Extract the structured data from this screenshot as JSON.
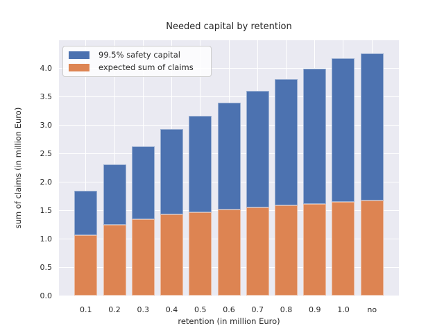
{
  "chart_data": {
    "type": "bar",
    "stacked": true,
    "title": "Needed capital by retention",
    "xlabel": "retention (in million Euro)",
    "ylabel": "sum of claims (in million Euro)",
    "categories": [
      "0.1",
      "0.2",
      "0.3",
      "0.4",
      "0.5",
      "0.6",
      "0.7",
      "0.8",
      "0.9",
      "1.0",
      "no"
    ],
    "series": [
      {
        "name": "99.5% safety capital",
        "color": "#4c72b0",
        "segment_values": [
          0.79,
          1.06,
          1.28,
          1.5,
          1.7,
          1.88,
          2.06,
          2.23,
          2.38,
          2.53,
          2.6
        ],
        "stack_totals": [
          1.85,
          2.31,
          2.63,
          2.93,
          3.17,
          3.4,
          3.61,
          3.82,
          4.0,
          4.18,
          4.27
        ]
      },
      {
        "name": "expected sum of claims",
        "color": "#dd8452",
        "segment_values": [
          1.06,
          1.25,
          1.35,
          1.43,
          1.47,
          1.52,
          1.55,
          1.59,
          1.62,
          1.65,
          1.67
        ]
      }
    ],
    "ylim": [
      0,
      4.5
    ],
    "ytick_labels": [
      "0.0",
      "0.5",
      "1.0",
      "1.5",
      "2.0",
      "2.5",
      "3.0",
      "3.5",
      "4.0"
    ],
    "grid": true,
    "legend_position": "upper left",
    "plot_bg_color": "#eaeaf2",
    "grid_color": "#ffffff",
    "text_color": "#262626"
  }
}
